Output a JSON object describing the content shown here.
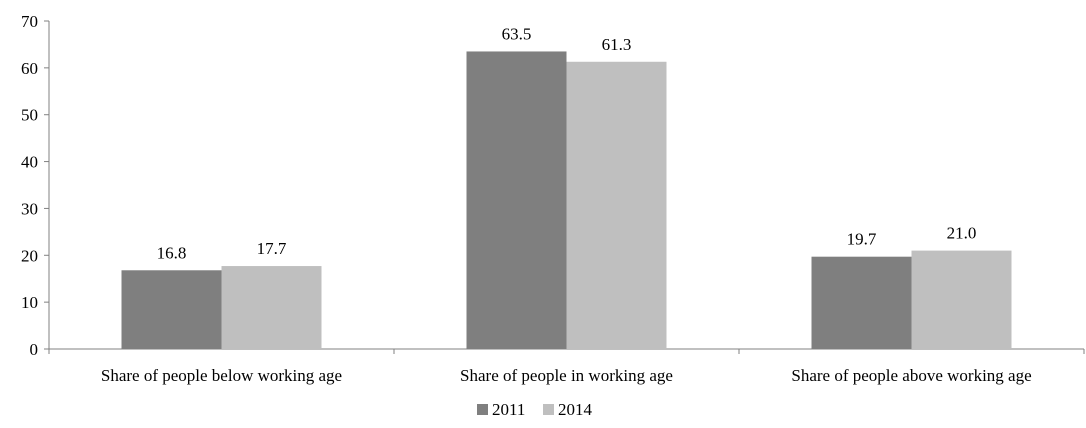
{
  "chart_data": {
    "type": "bar",
    "title": "",
    "xlabel": "",
    "ylabel": "",
    "categories": [
      "Share of people below working age",
      "Share of people in working age",
      "Share of people above working age"
    ],
    "series": [
      {
        "name": "2011",
        "values": [
          16.8,
          63.5,
          19.7
        ],
        "labels": [
          "16.8",
          "63.5",
          "19.7"
        ],
        "color": "#7f7f7f"
      },
      {
        "name": "2014",
        "values": [
          17.7,
          61.3,
          21.0
        ],
        "labels": [
          "17.7",
          "61.3",
          "21.0"
        ],
        "color": "#bfbfbf"
      }
    ],
    "ylim": [
      0,
      70
    ],
    "yticks": [
      0,
      10,
      20,
      30,
      40,
      50,
      60,
      70
    ],
    "grid": false,
    "legend_position": "bottom-center",
    "axis_color": "#808080"
  }
}
